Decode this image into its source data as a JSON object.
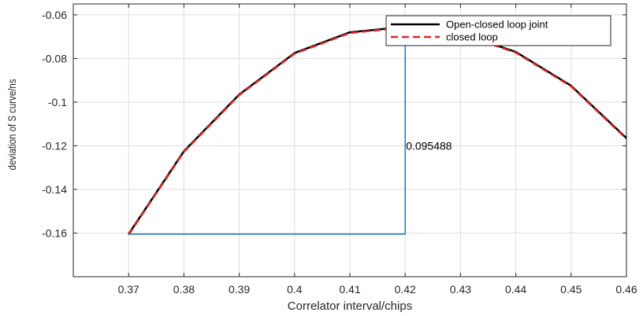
{
  "chart_data": {
    "type": "line",
    "title": "",
    "xlabel": "Correlator interval/chips",
    "ylabel": "deviation of S curve/ns",
    "xlim": [
      0.36,
      0.46
    ],
    "ylim": [
      -0.18,
      -0.055
    ],
    "grid": true,
    "legend_position": "top-right",
    "x_ticks": [
      0.37,
      0.38,
      0.39,
      0.4,
      0.41,
      0.42,
      0.43,
      0.44,
      0.45,
      0.46
    ],
    "x_tick_labels": [
      "0.37",
      "0.38",
      "0.39",
      "0.4",
      "0.41",
      "0.42",
      "0.43",
      "0.44",
      "0.45",
      "0.46"
    ],
    "y_ticks": [
      -0.06,
      -0.08,
      -0.1,
      -0.12,
      -0.14,
      -0.16
    ],
    "y_tick_labels": [
      "-0.06",
      "-0.08",
      "-0.1",
      "-0.12",
      "-0.14",
      "-0.16"
    ],
    "series": [
      {
        "name": "Open-closed loop joint",
        "color": "#000000",
        "style": "solid",
        "x": [
          0.37,
          0.38,
          0.39,
          0.4,
          0.41,
          0.42,
          0.43,
          0.44,
          0.45,
          0.46
        ],
        "y": [
          -0.1605,
          -0.1225,
          -0.0965,
          -0.0775,
          -0.068,
          -0.0655,
          -0.0685,
          -0.077,
          -0.0925,
          -0.1165
        ]
      },
      {
        "name": "closed loop",
        "color": "#d62728",
        "style": "dashed",
        "x": [
          0.37,
          0.38,
          0.39,
          0.4,
          0.41,
          0.42,
          0.43,
          0.44,
          0.45,
          0.46
        ],
        "y": [
          -0.1608,
          -0.1228,
          -0.0968,
          -0.0778,
          -0.0683,
          -0.0658,
          -0.0688,
          -0.0773,
          -0.0928,
          -0.1168
        ]
      }
    ],
    "annotation": {
      "text": "0.095488",
      "color": "#1f77b4",
      "x_start": 0.37,
      "x_corner": 0.42,
      "y_base": -0.1605,
      "y_top": -0.065,
      "label_y": -0.12
    }
  }
}
